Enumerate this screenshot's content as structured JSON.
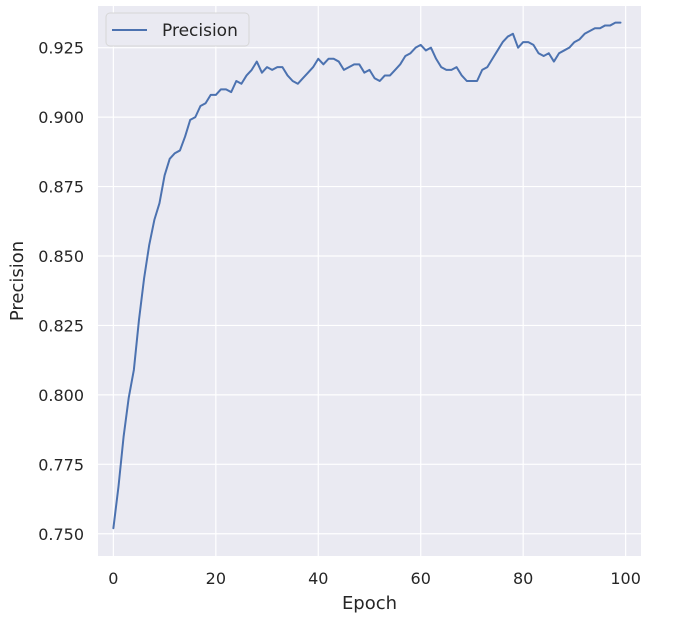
{
  "chart_data": {
    "type": "line",
    "title": "",
    "xlabel": "Epoch",
    "ylabel": "Precision",
    "xlim": [
      -3,
      103
    ],
    "ylim": [
      0.742,
      0.94
    ],
    "xticks": [
      0,
      20,
      40,
      60,
      80,
      100
    ],
    "xtick_labels": [
      "0",
      "20",
      "40",
      "60",
      "80",
      "100"
    ],
    "yticks": [
      0.75,
      0.775,
      0.8,
      0.825,
      0.85,
      0.875,
      0.9,
      0.925
    ],
    "ytick_labels": [
      "0.750",
      "0.775",
      "0.800",
      "0.825",
      "0.850",
      "0.875",
      "0.900",
      "0.925"
    ],
    "grid": true,
    "legend": {
      "placement": "top-left"
    },
    "background": "#eaeaf2",
    "series": [
      {
        "name": "Precision",
        "color": "#4c72b0",
        "x": [
          0,
          1,
          2,
          3,
          4,
          5,
          6,
          7,
          8,
          9,
          10,
          11,
          12,
          13,
          14,
          15,
          16,
          17,
          18,
          19,
          20,
          21,
          22,
          23,
          24,
          25,
          26,
          27,
          28,
          29,
          30,
          31,
          32,
          33,
          34,
          35,
          36,
          37,
          38,
          39,
          40,
          41,
          42,
          43,
          44,
          45,
          46,
          47,
          48,
          49,
          50,
          51,
          52,
          53,
          54,
          55,
          56,
          57,
          58,
          59,
          60,
          61,
          62,
          63,
          64,
          65,
          66,
          67,
          68,
          69,
          70,
          71,
          72,
          73,
          74,
          75,
          76,
          77,
          78,
          79,
          80,
          81,
          82,
          83,
          84,
          85,
          86,
          87,
          88,
          89,
          90,
          91,
          92,
          93,
          94,
          95,
          96,
          97,
          98,
          99
        ],
        "values": [
          0.752,
          0.767,
          0.785,
          0.799,
          0.809,
          0.827,
          0.842,
          0.854,
          0.863,
          0.869,
          0.879,
          0.885,
          0.887,
          0.888,
          0.893,
          0.899,
          0.9,
          0.904,
          0.905,
          0.908,
          0.908,
          0.91,
          0.91,
          0.909,
          0.913,
          0.912,
          0.915,
          0.917,
          0.92,
          0.916,
          0.918,
          0.917,
          0.918,
          0.918,
          0.915,
          0.913,
          0.912,
          0.914,
          0.916,
          0.918,
          0.921,
          0.919,
          0.921,
          0.921,
          0.92,
          0.917,
          0.918,
          0.919,
          0.919,
          0.916,
          0.917,
          0.914,
          0.913,
          0.915,
          0.915,
          0.917,
          0.919,
          0.922,
          0.923,
          0.925,
          0.926,
          0.924,
          0.925,
          0.921,
          0.918,
          0.917,
          0.917,
          0.918,
          0.915,
          0.913,
          0.913,
          0.913,
          0.917,
          0.918,
          0.921,
          0.924,
          0.927,
          0.929,
          0.93,
          0.925,
          0.927,
          0.927,
          0.926,
          0.923,
          0.922,
          0.923,
          0.92,
          0.923,
          0.924,
          0.925,
          0.927,
          0.928,
          0.93,
          0.931,
          0.932,
          0.932,
          0.933,
          0.933,
          0.934,
          0.934
        ]
      }
    ]
  }
}
